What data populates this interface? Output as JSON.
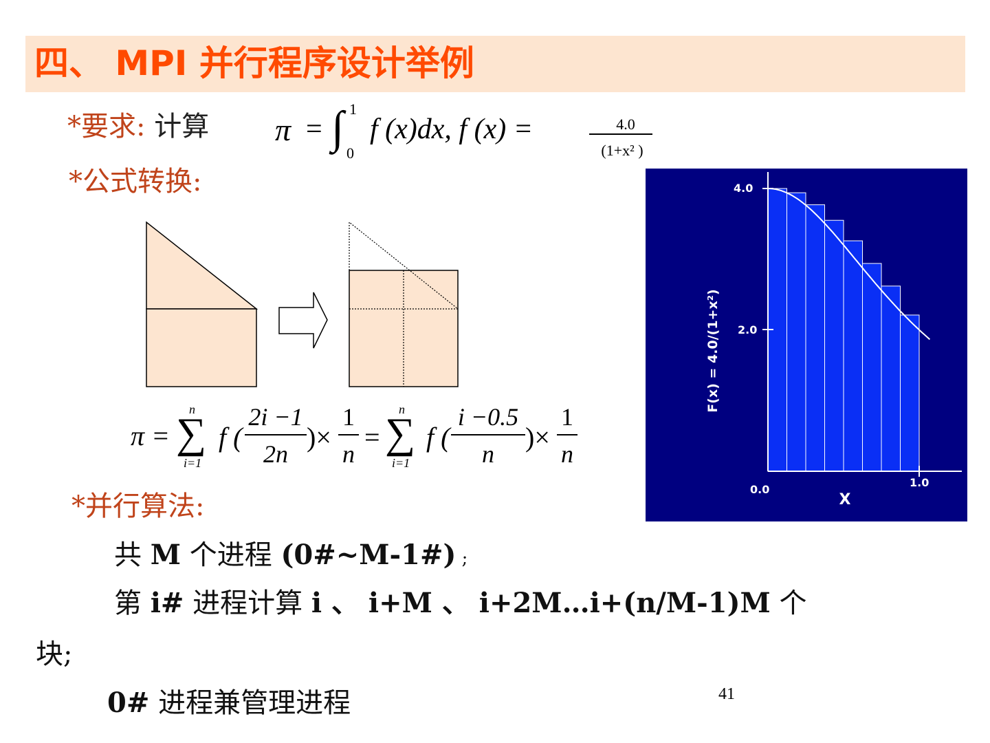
{
  "title": "四、 MPI 并行程序设计举例",
  "requirement": {
    "bullet": "*",
    "label": "要求:",
    "text": "计算",
    "formula": {
      "pi": "π",
      "eq": "=",
      "integral": "∫",
      "upper": "1",
      "lower": "0",
      "integrand": "f (x)dx, f (x) =",
      "numerator": "4.0",
      "denominator": "(1+x² )"
    }
  },
  "conversion": {
    "bullet": "*",
    "label": "公式转换:"
  },
  "sum_formula": {
    "pi": "π =",
    "sum1_upper": "n",
    "sum1_lower": "i=1",
    "f1": "f (",
    "frac1_num": "2i −1",
    "frac1_den": "2n",
    "times1": ")×",
    "frac2_num": "1",
    "frac2_den": "n",
    "eq2": "=",
    "sum2_upper": "n",
    "sum2_lower": "i=1",
    "f2": "f (",
    "frac3_num": "i −0.5",
    "frac3_den": "n",
    "times2": ")×",
    "frac4_num": "1",
    "frac4_den": "n"
  },
  "parallel": {
    "bullet": "*",
    "label": "并行算法:",
    "line1": {
      "a": "共 ",
      "b": "M",
      "c": " 个进程 ",
      "d": "(0#~M-1#)",
      "e": " ;"
    },
    "line2": {
      "a": "第 ",
      "b": "i#",
      "c": " 进程计算 ",
      "d": "i 、 i+M 、 i+2M…i+(n/M-1)M",
      "e": " 个"
    },
    "line3": "块;",
    "line4": {
      "a": "0#",
      "b": " 进程兼管理进程"
    }
  },
  "graph": {
    "ylabel": "F(x) = 4.0/(1+x²)",
    "xlabel": "X",
    "y_ticks": [
      "4.0",
      "2.0"
    ],
    "x_ticks": [
      "0.0",
      "1.0"
    ],
    "bar_count": 8,
    "bar_heights_y": [
      4.0,
      3.94,
      3.77,
      3.55,
      3.26,
      2.94,
      2.62,
      2.21
    ],
    "colors": {
      "background": "#000080",
      "bars": "#0a2ff5",
      "lines": "#ffffff"
    }
  },
  "shapes": {
    "fill": "#fde5d0"
  },
  "page_number": "41"
}
